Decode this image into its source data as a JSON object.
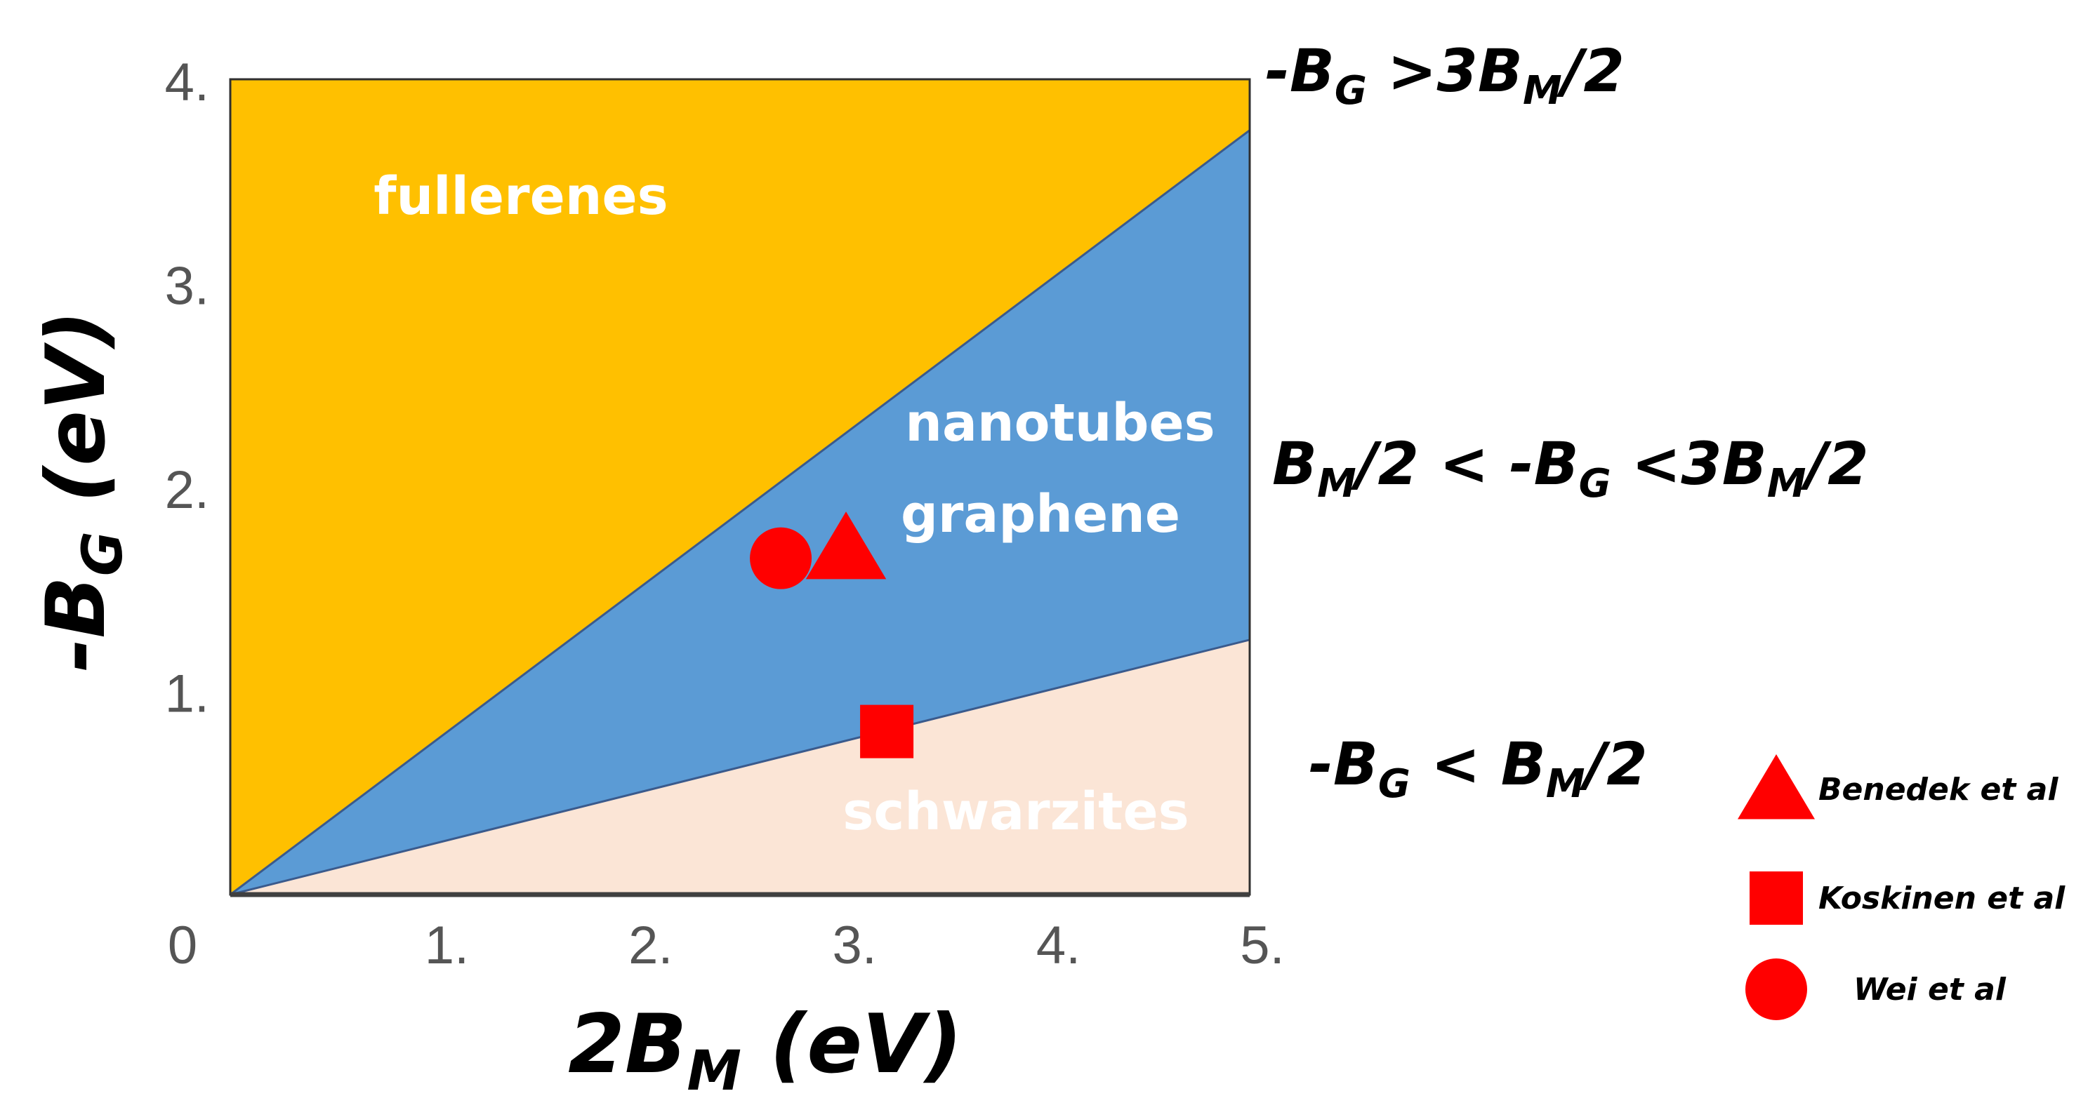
{
  "chart_data": {
    "type": "area",
    "xlabel": {
      "base": "2B",
      "sub": "M",
      "rest": " (eV)"
    },
    "ylabel": {
      "base": "-B",
      "sub": "G",
      "rest": " (eV)"
    },
    "xlim": [
      0,
      5
    ],
    "ylim": [
      0,
      4
    ],
    "x_ticks": [
      {
        "value": 0,
        "label": "0"
      },
      {
        "value": 1,
        "label": "1."
      },
      {
        "value": 2,
        "label": "2."
      },
      {
        "value": 3,
        "label": "3."
      },
      {
        "value": 4,
        "label": "4."
      },
      {
        "value": 5,
        "label": "5."
      }
    ],
    "y_ticks": [
      {
        "value": 1,
        "label": "1."
      },
      {
        "value": 2,
        "label": "2."
      },
      {
        "value": 3,
        "label": "3."
      },
      {
        "value": 4,
        "label": "4."
      }
    ],
    "boundaries": [
      {
        "name": "upper",
        "x": [
          0,
          5
        ],
        "y": [
          0,
          3.75
        ],
        "color": "#3a5a8c"
      },
      {
        "name": "lower",
        "x": [
          0,
          5
        ],
        "y": [
          0,
          1.25
        ],
        "color": "#3a5a8c"
      }
    ],
    "regions": [
      {
        "label": "fullerenes",
        "color": "#ffc000",
        "inequality": {
          "parts": [
            "-B",
            "G",
            " >3B",
            "M",
            "/2"
          ]
        }
      },
      {
        "label_lines": [
          "nanotubes",
          "graphene"
        ],
        "color": "#5b9bd5",
        "inequality": {
          "parts": [
            "B",
            "M",
            "/2 < -B",
            "G",
            " <3B",
            "M",
            "/2"
          ]
        }
      },
      {
        "label": "schwarzites",
        "color": "#fbe5d6",
        "inequality": {
          "parts": [
            "-B",
            "G",
            " < B",
            "M",
            "/2"
          ]
        }
      }
    ],
    "points": [
      {
        "series": "Benedek et al",
        "marker": "triangle",
        "x": 3.02,
        "y": 1.7,
        "color": "#ff0000"
      },
      {
        "series": "Koskinen et al",
        "marker": "square",
        "x": 3.22,
        "y": 0.8,
        "color": "#ff0000"
      },
      {
        "series": "Wei et al",
        "marker": "circle",
        "x": 2.7,
        "y": 1.65,
        "color": "#ff0000"
      }
    ],
    "legend": {
      "placement": "bottom-right",
      "entries": [
        {
          "marker": "triangle",
          "label": "Benedek et al"
        },
        {
          "marker": "square",
          "label": "Koskinen et al"
        },
        {
          "marker": "circle",
          "label": "Wei et al"
        }
      ]
    },
    "grid": false
  }
}
